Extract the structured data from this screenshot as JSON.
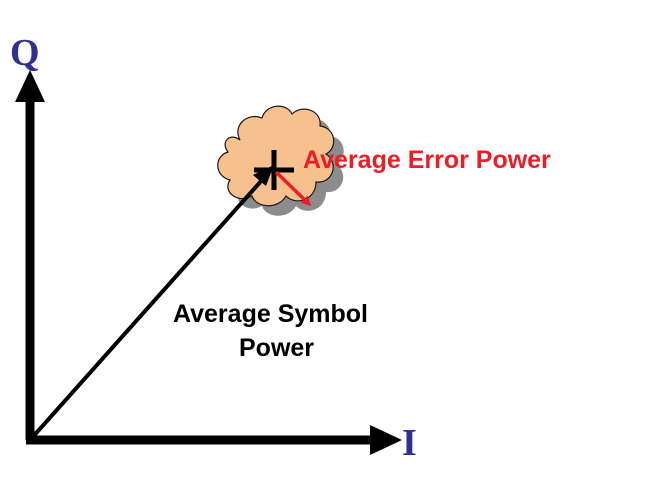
{
  "labels": {
    "q_axis": "Q",
    "i_axis": "I",
    "error_power": "Average Error Power",
    "symbol_power_line1": "Average Symbol",
    "symbol_power_line2": "Power"
  },
  "colors": {
    "axis_label": "#2e3192",
    "axes": "#000000",
    "error": "#ee1c25",
    "cloud_fill": "#f6c08f",
    "cloud_outline": "#1a1a1a",
    "cloud_shadow": "#8c8c8c",
    "text": "#000000"
  }
}
